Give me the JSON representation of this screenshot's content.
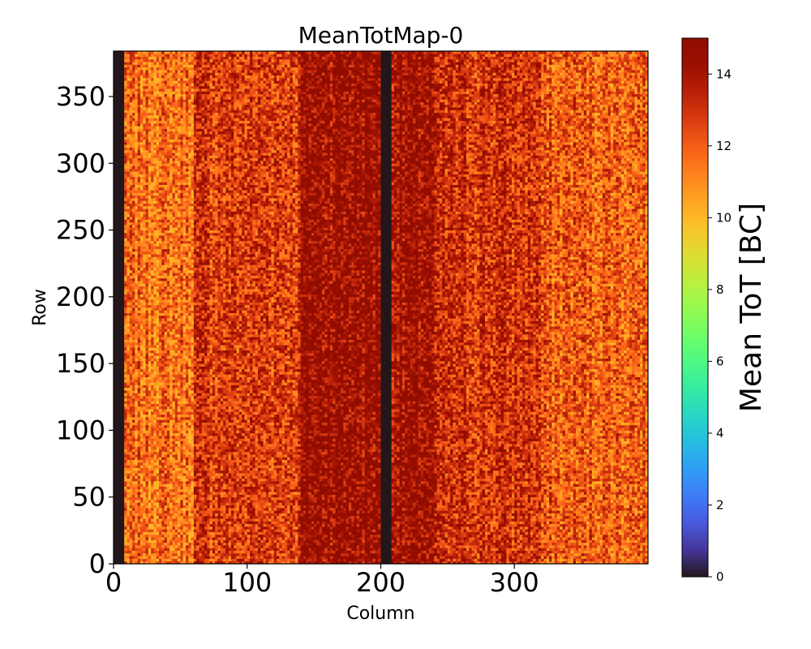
{
  "chart_data": {
    "type": "heatmap",
    "title": "MeanTotMap-0",
    "xlabel": "Column",
    "ylabel": "Row",
    "xlim": [
      0,
      400
    ],
    "ylim": [
      0,
      384
    ],
    "xticks": [
      0,
      100,
      200,
      300
    ],
    "xtick_labels": [
      "0",
      "100",
      "200",
      "300"
    ],
    "yticks": [
      0,
      50,
      100,
      150,
      200,
      250,
      300,
      350
    ],
    "ytick_labels": [
      "0",
      "50",
      "100",
      "150",
      "200",
      "250",
      "300",
      "350"
    ],
    "colorbar": {
      "label": "Mean ToT [BC]",
      "vmin": 0,
      "vmax": 15,
      "ticks": [
        0,
        2,
        4,
        6,
        8,
        10,
        12,
        14
      ],
      "tick_labels": [
        "0",
        "2",
        "4",
        "6",
        "8",
        "10",
        "12",
        "14"
      ],
      "colormap": "turbo"
    },
    "column_profile": [
      {
        "from": 0,
        "to": 8,
        "value": 0
      },
      {
        "from": 8,
        "to": 60,
        "value": 11.6
      },
      {
        "from": 60,
        "to": 140,
        "value": 12.8
      },
      {
        "from": 140,
        "to": 200,
        "value": 14.4
      },
      {
        "from": 200,
        "to": 208,
        "value": 0
      },
      {
        "from": 208,
        "to": 240,
        "value": 14.2
      },
      {
        "from": 240,
        "to": 320,
        "value": 13.0
      },
      {
        "from": 320,
        "to": 400,
        "value": 12.0
      }
    ],
    "dead_column_bands": [
      [
        0,
        8
      ],
      [
        200,
        208
      ]
    ],
    "typical_value_range": [
      10,
      15
    ]
  }
}
